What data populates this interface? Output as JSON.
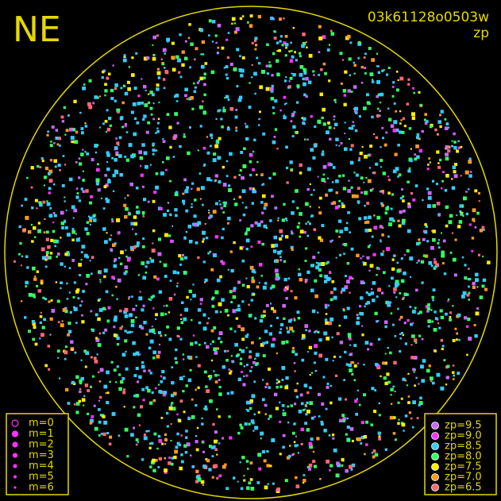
{
  "header": {
    "direction": "NE",
    "frame_id": "03k61128o0503w",
    "mode": "zp"
  },
  "magnitude_legend": {
    "labels": [
      "m=0",
      "m=1",
      "m=2",
      "m=3",
      "m=4",
      "m=5",
      "m=6"
    ],
    "color": "#ff33ff"
  },
  "zp_legend": {
    "labels": [
      "zp=9.5",
      "zp=9.0",
      "zp=8.5",
      "zp=8.0",
      "zp=7.5",
      "zp=7.0",
      "zp=6.5"
    ],
    "colors": [
      "#cc66ff",
      "#ff33ff",
      "#33ccff",
      "#33ff66",
      "#ffee00",
      "#ff9922",
      "#ff6677"
    ]
  }
}
